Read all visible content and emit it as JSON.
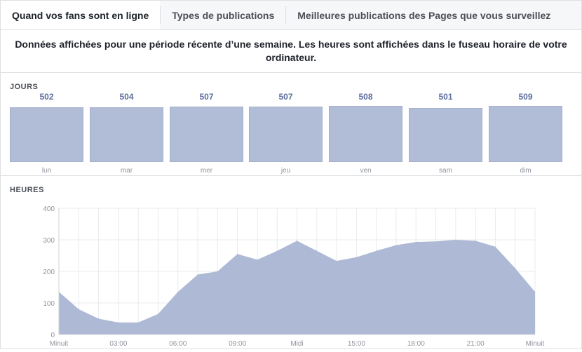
{
  "tabs": [
    {
      "label": "Quand vos fans sont en ligne",
      "active": true
    },
    {
      "label": "Types de publications",
      "active": false
    },
    {
      "label": "Meilleures publications des Pages que vous surveillez",
      "active": false
    }
  ],
  "notice": "Données affichées pour une période récente d’une semaine. Les heures sont affichées dans le fuseau horaire de votre ordinateur.",
  "colors": {
    "bar": "#b1bcd6",
    "value_text": "#5d6d9e",
    "area": "#aab6d3"
  },
  "chart_data": [
    {
      "type": "bar",
      "title": "JOURS",
      "categories": [
        "lun",
        "mar",
        "mer",
        "jeu",
        "ven",
        "sam",
        "dim"
      ],
      "values": [
        502,
        504,
        507,
        507,
        508,
        501,
        509
      ]
    },
    {
      "type": "area",
      "title": "HEURES",
      "ylim": [
        0,
        400
      ],
      "yticks": [
        0,
        100,
        200,
        300,
        400
      ],
      "xtick_labels": [
        "Minuit",
        "03:00",
        "06:00",
        "09:00",
        "Midi",
        "15:00",
        "18:00",
        "21:00",
        "Minuit"
      ],
      "x": [
        0,
        1,
        2,
        3,
        4,
        5,
        6,
        7,
        8,
        9,
        10,
        11,
        12,
        13,
        14,
        15,
        16,
        17,
        18,
        19,
        20,
        21,
        22,
        23,
        24
      ],
      "values": [
        135,
        80,
        50,
        38,
        38,
        65,
        135,
        190,
        200,
        255,
        237,
        265,
        297,
        265,
        233,
        245,
        265,
        283,
        293,
        295,
        300,
        297,
        278,
        210,
        135
      ],
      "grid": true
    }
  ]
}
